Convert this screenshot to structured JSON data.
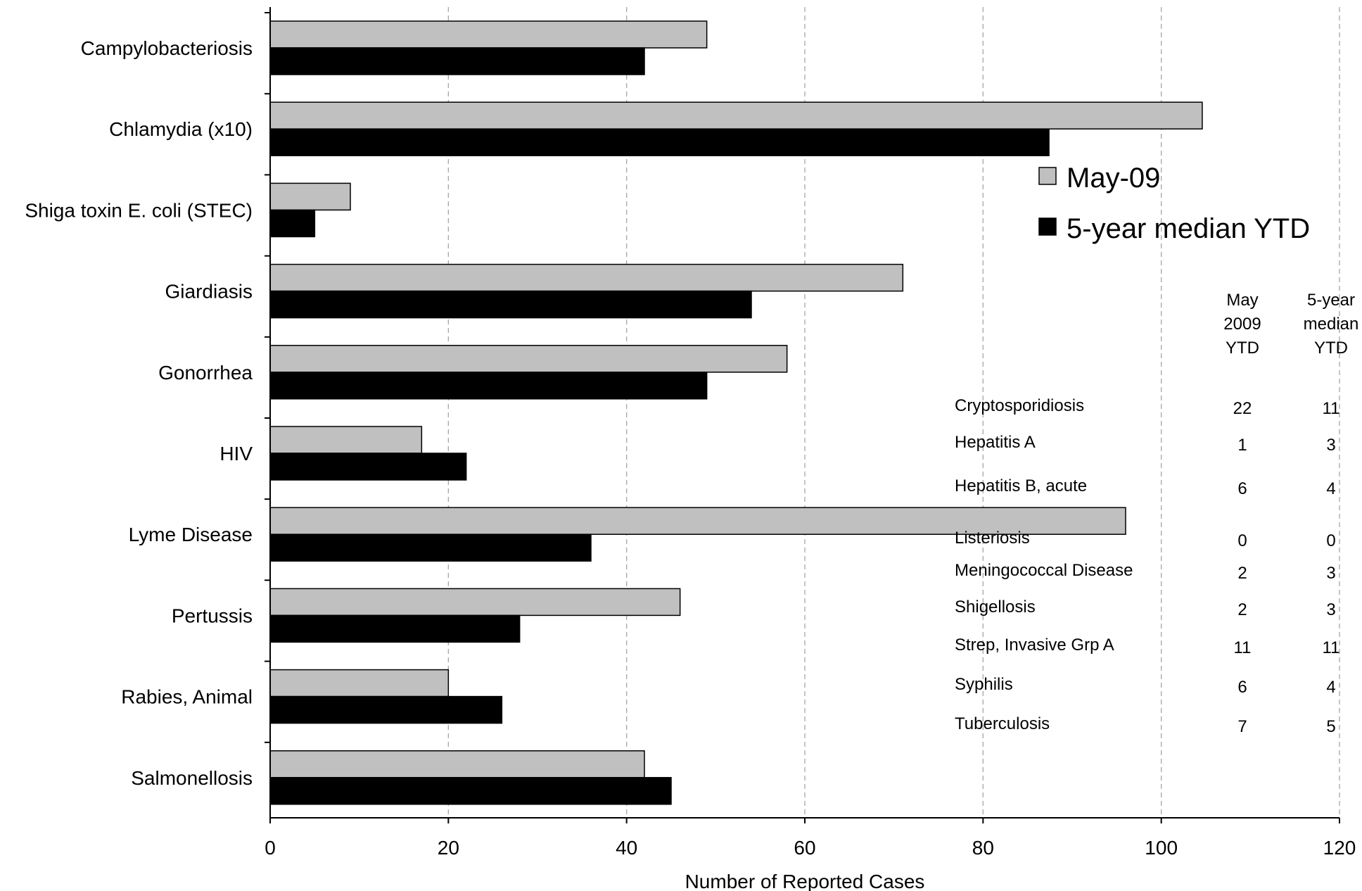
{
  "chart_data": {
    "type": "bar",
    "orientation": "horizontal",
    "categories": [
      "Campylobacteriosis",
      "Chlamydia (x10)",
      "Shiga toxin E. coli (STEC)",
      "Giardiasis",
      "Gonorrhea",
      "HIV",
      "Lyme Disease",
      "Pertussis",
      "Rabies, Animal",
      "Salmonellosis"
    ],
    "series": [
      {
        "name": "May-09",
        "color": "#c0c0c0",
        "values": [
          49,
          104.6,
          9,
          71,
          58,
          17,
          96,
          46,
          20,
          42
        ]
      },
      {
        "name": "5-year median YTD",
        "color": "#000000",
        "values": [
          42,
          87.4,
          5,
          54,
          49,
          22,
          36,
          28,
          26,
          45
        ]
      }
    ],
    "xlabel": "Number of Reported Cases",
    "xlim": [
      0,
      120
    ],
    "xticks": [
      0,
      20,
      40,
      60,
      80,
      100,
      120
    ],
    "grid": "vertical dashed",
    "legend_position": "right"
  },
  "table": {
    "headers": [
      [
        "May",
        "2009",
        "YTD"
      ],
      [
        "5-year",
        "median",
        "YTD"
      ]
    ],
    "rows": [
      {
        "name": "Cryptosporidiosis",
        "may": "22",
        "median": "11"
      },
      {
        "name": "Hepatitis A",
        "may": "1",
        "median": "3"
      },
      {
        "name": "Hepatitis B, acute",
        "may": "6",
        "median": "4"
      },
      {
        "name": "Listeriosis",
        "may": "0",
        "median": "0"
      },
      {
        "name": "Meningococcal Disease",
        "may": "2",
        "median": "3"
      },
      {
        "name": "Shigellosis",
        "may": "2",
        "median": "3"
      },
      {
        "name": "Strep, Invasive Grp A",
        "may": "11",
        "median": "11"
      },
      {
        "name": "Syphilis",
        "may": "6",
        "median": "4"
      },
      {
        "name": "Tuberculosis",
        "may": "7",
        "median": "5"
      }
    ]
  }
}
